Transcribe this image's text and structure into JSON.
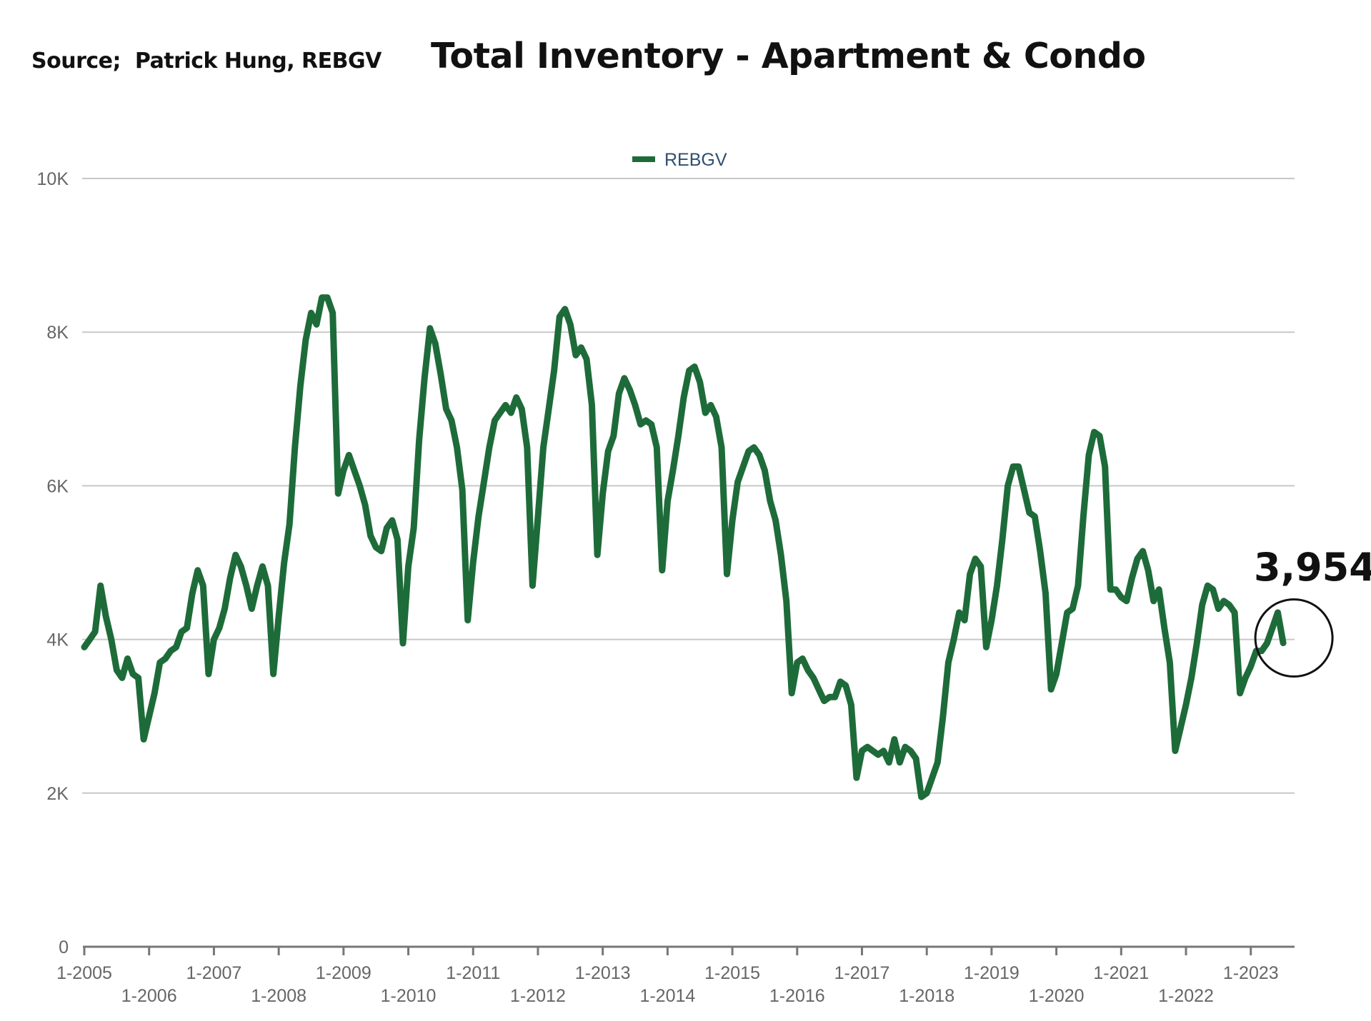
{
  "header": {
    "source": "Source;  Patrick Hung, REBGV",
    "title": "Total Inventory - Apartment & Condo"
  },
  "chart_data": {
    "type": "line",
    "title": "Total Inventory - Apartment & Condo",
    "xlabel": "",
    "ylabel": "",
    "ylim": [
      0,
      10000
    ],
    "yticks": [
      0,
      2000,
      4000,
      6000,
      8000,
      10000
    ],
    "ytick_labels": [
      "0",
      "2K",
      "4K",
      "6K",
      "8K",
      "10K"
    ],
    "xtick_labels": [
      "1-2005",
      "1-2006",
      "1-2007",
      "1-2008",
      "1-2009",
      "1-2010",
      "1-2011",
      "1-2012",
      "1-2013",
      "1-2014",
      "1-2015",
      "1-2016",
      "1-2017",
      "1-2018",
      "1-2019",
      "1-2020",
      "1-2021",
      "1-2022",
      "1-2023"
    ],
    "grid": true,
    "legend_position": "top-center",
    "series": [
      {
        "name": "REBGV",
        "color": "#1e6b3a",
        "start": "1-2005",
        "frequency": "monthly",
        "values": [
          3900,
          4000,
          4100,
          4700,
          4300,
          4000,
          3600,
          3500,
          3750,
          3550,
          3500,
          2700,
          3000,
          3300,
          3700,
          3750,
          3850,
          3900,
          4100,
          4150,
          4600,
          4900,
          4700,
          3550,
          4000,
          4150,
          4400,
          4800,
          5100,
          4950,
          4700,
          4400,
          4700,
          4950,
          4700,
          3550,
          4300,
          5000,
          5500,
          6500,
          7300,
          7900,
          8250,
          8100,
          8450,
          8450,
          8250,
          5900,
          6200,
          6400,
          6200,
          6000,
          5750,
          5350,
          5200,
          5150,
          5450,
          5550,
          5300,
          3950,
          4950,
          5450,
          6600,
          7400,
          8050,
          7850,
          7450,
          7000,
          6850,
          6500,
          5950,
          4250,
          5000,
          5600,
          6050,
          6500,
          6850,
          6950,
          7050,
          6950,
          7150,
          7000,
          6500,
          4700,
          5600,
          6500,
          7000,
          7500,
          8200,
          8300,
          8100,
          7700,
          7800,
          7650,
          7050,
          5100,
          5900,
          6450,
          6650,
          7200,
          7400,
          7250,
          7050,
          6800,
          6850,
          6800,
          6500,
          4900,
          5800,
          6200,
          6650,
          7150,
          7500,
          7550,
          7350,
          6950,
          7050,
          6900,
          6500,
          4850,
          5550,
          6050,
          6250,
          6450,
          6500,
          6400,
          6200,
          5800,
          5550,
          5100,
          4500,
          3300,
          3700,
          3750,
          3600,
          3500,
          3350,
          3200,
          3250,
          3250,
          3450,
          3400,
          3150,
          2200,
          2550,
          2600,
          2550,
          2500,
          2550,
          2400,
          2700,
          2400,
          2600,
          2550,
          2450,
          1950,
          2000,
          2200,
          2400,
          3000,
          3700,
          4000,
          4350,
          4250,
          4850,
          5050,
          4950,
          3900,
          4250,
          4700,
          5300,
          6000,
          6250,
          6250,
          5950,
          5650,
          5600,
          5150,
          4600,
          3350,
          3550,
          3950,
          4350,
          4400,
          4700,
          5600,
          6400,
          6700,
          6650,
          6250,
          4650,
          4650,
          4550,
          4500,
          4800,
          5050,
          5150,
          4900,
          4500,
          4650,
          4150,
          3700,
          2550,
          2850,
          3150,
          3500,
          3950,
          4450,
          4700,
          4650,
          4400,
          4500,
          4450,
          4350,
          3300,
          3500,
          3650,
          3850,
          3850,
          3950,
          4150,
          4350,
          3954
        ]
      }
    ],
    "annotations": [
      {
        "text": "3,954",
        "x": "8-2023",
        "y": 3954
      }
    ]
  }
}
